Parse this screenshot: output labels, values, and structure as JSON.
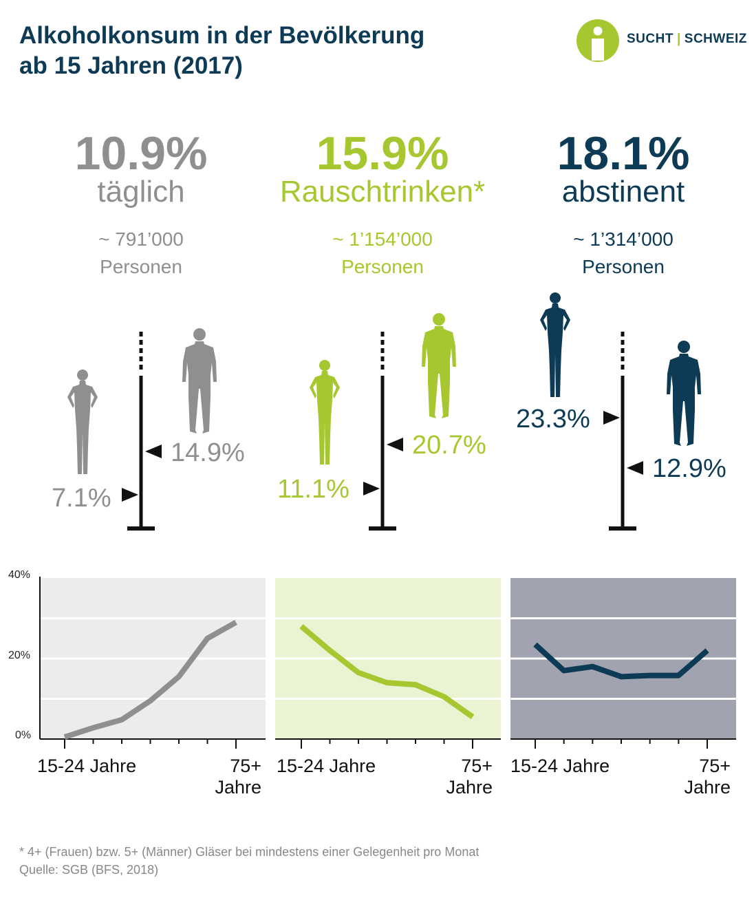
{
  "title_line1": "Alkoholkonsum in der Bevölkerung",
  "title_line2": "ab 15 Jahren (2017)",
  "logo": {
    "left": "SUCHT",
    "divider": "|",
    "right": "SCHWEIZ"
  },
  "colors": {
    "grey": "#8f8f8f",
    "green": "#a6c72f",
    "navy": "#0d3a55",
    "title": "#0d3a55"
  },
  "stats": [
    {
      "pct": "10.9%",
      "label": "täglich",
      "count": "~ 791’000",
      "persons": "Personen",
      "color": "#8f8f8f"
    },
    {
      "pct": "15.9%",
      "label": "Rauschtrinken*",
      "count": "~ 1’154’000",
      "persons": "Personen",
      "color": "#a6c72f"
    },
    {
      "pct": "18.1%",
      "label": "abstinent",
      "count": "~ 1’314’000",
      "persons": "Personen",
      "color": "#0d3a55"
    }
  ],
  "gender": [
    {
      "women": "7.1%",
      "men": "14.9%"
    },
    {
      "women": "11.1%",
      "men": "20.7%"
    },
    {
      "women": "23.3%",
      "men": "12.9%"
    }
  ],
  "chart_data": [
    {
      "type": "line",
      "name": "täglich",
      "x_first": "15-24 Jahre",
      "x_last": "75+ Jahre",
      "values": [
        0.5,
        2.8,
        4.8,
        9.5,
        15.5,
        25.0,
        29.0
      ],
      "ylim": [
        0,
        40
      ],
      "yticks": [
        "0%",
        "20%",
        "40%"
      ],
      "line_color": "#8f8f8f",
      "bg_color": "#ececec"
    },
    {
      "type": "line",
      "name": "Rauschtrinken",
      "x_first": "15-24 Jahre",
      "x_last": "75+ Jahre",
      "values": [
        28.0,
        22.0,
        16.5,
        14.0,
        13.5,
        10.5,
        5.5
      ],
      "ylim": [
        0,
        40
      ],
      "line_color": "#a6c72f",
      "bg_color": "#eaf4d3"
    },
    {
      "type": "line",
      "name": "abstinent",
      "x_first": "15-24 Jahre",
      "x_last": "75+ Jahre",
      "values": [
        23.5,
        17.0,
        18.0,
        15.5,
        15.8,
        15.8,
        22.0
      ],
      "ylim": [
        0,
        40
      ],
      "line_color": "#0d3a55",
      "bg_color": "#a1a3b1"
    }
  ],
  "footnote": "* 4+ (Frauen) bzw. 5+ (Männer) Gläser bei mindestens einer Gelegenheit pro Monat",
  "source": "Quelle: SGB (BFS, 2018)"
}
